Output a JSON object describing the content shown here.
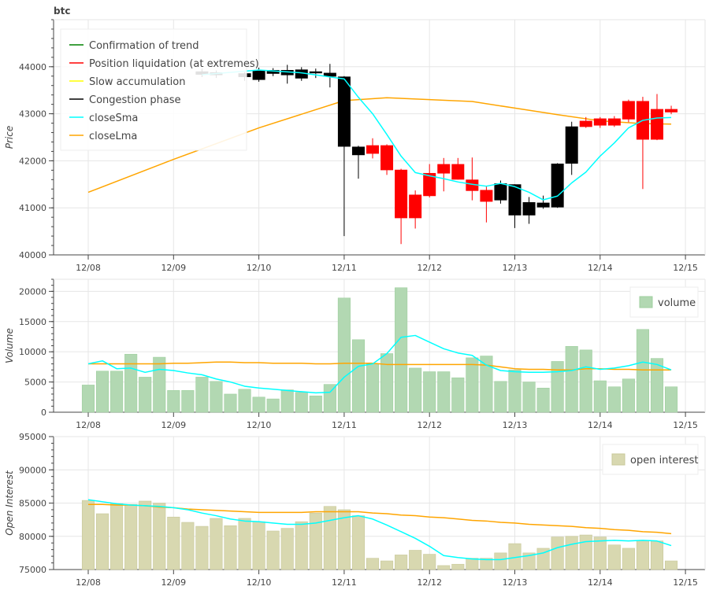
{
  "chart_data": [
    {
      "type": "candlestick",
      "title": "btc",
      "ylabel": "Price",
      "ylim": [
        40000,
        45000
      ],
      "yticks": [
        40000,
        41000,
        42000,
        43000,
        44000
      ],
      "xlim": [
        "12/07 19:00",
        "12/15 05:00"
      ],
      "xticks": [
        "12/08",
        "12/09",
        "12/10",
        "12/11",
        "12/12",
        "12/13",
        "12/14",
        "12/15"
      ],
      "legend_position": "top-left",
      "legend": [
        {
          "label": "Confirmation of trend",
          "color": "#008000"
        },
        {
          "label": "Position liquidation (at extremes)",
          "color": "#ff0000"
        },
        {
          "label": "Slow accumulation",
          "color": "#ffff00"
        },
        {
          "label": "Congestion phase",
          "color": "#000000"
        },
        {
          "label": "closeSma",
          "color": "#00ffff"
        },
        {
          "label": "closeLma",
          "color": "#ffa500"
        }
      ],
      "candles": [
        {
          "t": "12/09 08:00",
          "o": 43830,
          "h": 43960,
          "l": 43780,
          "c": 43900,
          "color": "#000000"
        },
        {
          "t": "12/09 12:00",
          "o": 43820,
          "h": 43920,
          "l": 43760,
          "c": 43880,
          "color": "#000000"
        },
        {
          "t": "12/09 20:00",
          "o": 43780,
          "h": 43880,
          "l": 43700,
          "c": 43860,
          "color": "#000000"
        },
        {
          "t": "12/10 00:00",
          "o": 43920,
          "h": 43980,
          "l": 43680,
          "c": 43720,
          "color": "#000000"
        },
        {
          "t": "12/10 04:00",
          "o": 43850,
          "h": 43970,
          "l": 43800,
          "c": 43930,
          "color": "#000000"
        },
        {
          "t": "12/10 08:00",
          "o": 43930,
          "h": 44040,
          "l": 43640,
          "c": 43820,
          "color": "#000000"
        },
        {
          "t": "12/10 12:00",
          "o": 43940,
          "h": 43990,
          "l": 43700,
          "c": 43750,
          "color": "#000000"
        },
        {
          "t": "12/10 16:00",
          "o": 43900,
          "h": 43960,
          "l": 43760,
          "c": 43860,
          "color": "#000000"
        },
        {
          "t": "12/10 20:00",
          "o": 43870,
          "h": 44060,
          "l": 43560,
          "c": 43790,
          "color": "#000000"
        },
        {
          "t": "12/11 00:00",
          "o": 43790,
          "h": 43800,
          "l": 40400,
          "c": 42300,
          "color": "#000000"
        },
        {
          "t": "12/11 04:00",
          "o": 42300,
          "h": 42320,
          "l": 41620,
          "c": 42120,
          "color": "#000000"
        },
        {
          "t": "12/11 08:00",
          "o": 42150,
          "h": 42480,
          "l": 42050,
          "c": 42330,
          "color": "#ff0000"
        },
        {
          "t": "12/11 12:00",
          "o": 42330,
          "h": 42350,
          "l": 41700,
          "c": 41800,
          "color": "#ff0000"
        },
        {
          "t": "12/11 16:00",
          "o": 41810,
          "h": 41830,
          "l": 40230,
          "c": 40780,
          "color": "#ff0000"
        },
        {
          "t": "12/11 20:00",
          "o": 40780,
          "h": 41370,
          "l": 40560,
          "c": 41280,
          "color": "#ff0000"
        },
        {
          "t": "12/12 00:00",
          "o": 41250,
          "h": 41930,
          "l": 41220,
          "c": 41740,
          "color": "#ff0000"
        },
        {
          "t": "12/12 04:00",
          "o": 41730,
          "h": 42060,
          "l": 41350,
          "c": 41930,
          "color": "#ff0000"
        },
        {
          "t": "12/12 08:00",
          "o": 41930,
          "h": 42060,
          "l": 41600,
          "c": 41600,
          "color": "#ff0000"
        },
        {
          "t": "12/12 12:00",
          "o": 41600,
          "h": 42070,
          "l": 41160,
          "c": 41360,
          "color": "#ff0000"
        },
        {
          "t": "12/12 16:00",
          "o": 41380,
          "h": 41470,
          "l": 40690,
          "c": 41130,
          "color": "#ff0000"
        },
        {
          "t": "12/12 20:00",
          "o": 41160,
          "h": 41580,
          "l": 41090,
          "c": 41520,
          "color": "#000000"
        },
        {
          "t": "12/13 00:00",
          "o": 41500,
          "h": 41500,
          "l": 40570,
          "c": 40840,
          "color": "#000000"
        },
        {
          "t": "12/13 04:00",
          "o": 40840,
          "h": 41230,
          "l": 40660,
          "c": 41120,
          "color": "#000000"
        },
        {
          "t": "12/13 08:00",
          "o": 41110,
          "h": 41260,
          "l": 40980,
          "c": 41010,
          "color": "#000000"
        },
        {
          "t": "12/13 12:00",
          "o": 41010,
          "h": 41950,
          "l": 41000,
          "c": 41940,
          "color": "#000000"
        },
        {
          "t": "12/13 16:00",
          "o": 41940,
          "h": 42830,
          "l": 41700,
          "c": 42730,
          "color": "#000000"
        },
        {
          "t": "12/13 20:00",
          "o": 42720,
          "h": 42930,
          "l": 42700,
          "c": 42850,
          "color": "#ff0000"
        },
        {
          "t": "12/14 00:00",
          "o": 42750,
          "h": 42930,
          "l": 42700,
          "c": 42900,
          "color": "#ff0000"
        },
        {
          "t": "12/14 04:00",
          "o": 42750,
          "h": 42950,
          "l": 42720,
          "c": 42900,
          "color": "#ff0000"
        },
        {
          "t": "12/14 08:00",
          "o": 42880,
          "h": 43300,
          "l": 42820,
          "c": 43270,
          "color": "#ff0000"
        },
        {
          "t": "12/14 12:00",
          "o": 43270,
          "h": 43360,
          "l": 41400,
          "c": 42450,
          "color": "#ff0000"
        },
        {
          "t": "12/14 16:00",
          "o": 42450,
          "h": 43420,
          "l": 42440,
          "c": 43100,
          "color": "#ff0000"
        },
        {
          "t": "12/14 20:00",
          "o": 43100,
          "h": 43170,
          "l": 42990,
          "c": 43030,
          "color": "#ff0000"
        }
      ],
      "closeSma": [
        {
          "t": "12/09 08:00",
          "v": 43830
        },
        {
          "t": "12/10 00:00",
          "v": 43930
        },
        {
          "t": "12/10 12:00",
          "v": 43870
        },
        {
          "t": "12/11 00:00",
          "v": 43740
        },
        {
          "t": "12/11 04:00",
          "v": 43350
        },
        {
          "t": "12/11 08:00",
          "v": 43000
        },
        {
          "t": "12/11 12:00",
          "v": 42560
        },
        {
          "t": "12/11 16:00",
          "v": 42100
        },
        {
          "t": "12/11 20:00",
          "v": 41750
        },
        {
          "t": "12/12 00:00",
          "v": 41680
        },
        {
          "t": "12/12 04:00",
          "v": 41620
        },
        {
          "t": "12/12 08:00",
          "v": 41550
        },
        {
          "t": "12/12 12:00",
          "v": 41500
        },
        {
          "t": "12/12 16:00",
          "v": 41460
        },
        {
          "t": "12/12 20:00",
          "v": 41520
        },
        {
          "t": "12/13 00:00",
          "v": 41450
        },
        {
          "t": "12/13 04:00",
          "v": 41330
        },
        {
          "t": "12/13 08:00",
          "v": 41170
        },
        {
          "t": "12/13 12:00",
          "v": 41250
        },
        {
          "t": "12/13 16:00",
          "v": 41530
        },
        {
          "t": "12/13 20:00",
          "v": 41760
        },
        {
          "t": "12/14 00:00",
          "v": 42100
        },
        {
          "t": "12/14 04:00",
          "v": 42380
        },
        {
          "t": "12/14 08:00",
          "v": 42700
        },
        {
          "t": "12/14 12:00",
          "v": 42860
        },
        {
          "t": "12/14 16:00",
          "v": 42910
        },
        {
          "t": "12/14 20:00",
          "v": 42920
        }
      ],
      "closeLma": [
        {
          "t": "12/08 00:00",
          "v": 41330
        },
        {
          "t": "12/09 00:00",
          "v": 42030
        },
        {
          "t": "12/10 00:00",
          "v": 42700
        },
        {
          "t": "12/11 00:00",
          "v": 43280
        },
        {
          "t": "12/11 12:00",
          "v": 43340
        },
        {
          "t": "12/12 00:00",
          "v": 43300
        },
        {
          "t": "12/12 12:00",
          "v": 43260
        },
        {
          "t": "12/13 00:00",
          "v": 43120
        },
        {
          "t": "12/13 12:00",
          "v": 42980
        },
        {
          "t": "12/14 00:00",
          "v": 42850
        },
        {
          "t": "12/14 12:00",
          "v": 42790
        },
        {
          "t": "12/14 20:00",
          "v": 42780
        }
      ]
    },
    {
      "type": "bar",
      "ylabel": "Volume",
      "ylim": [
        0,
        22000
      ],
      "yticks": [
        0,
        5000,
        10000,
        15000,
        20000
      ],
      "xticks": [
        "12/08",
        "12/09",
        "12/10",
        "12/11",
        "12/12",
        "12/13",
        "12/14",
        "12/15"
      ],
      "legend_position": "top-right",
      "legend": [
        {
          "label": "volume",
          "color": "#b2d8b2"
        }
      ],
      "bar_color": "#b2d8b2",
      "times": [
        "12/08 00:00",
        "12/08 04:00",
        "12/08 08:00",
        "12/08 12:00",
        "12/08 16:00",
        "12/08 20:00",
        "12/09 00:00",
        "12/09 04:00",
        "12/09 08:00",
        "12/09 12:00",
        "12/09 16:00",
        "12/09 20:00",
        "12/10 00:00",
        "12/10 04:00",
        "12/10 08:00",
        "12/10 12:00",
        "12/10 16:00",
        "12/10 20:00",
        "12/11 00:00",
        "12/11 04:00",
        "12/11 08:00",
        "12/11 12:00",
        "12/11 16:00",
        "12/11 20:00",
        "12/12 00:00",
        "12/12 04:00",
        "12/12 08:00",
        "12/12 12:00",
        "12/12 16:00",
        "12/12 20:00",
        "12/13 00:00",
        "12/13 04:00",
        "12/13 08:00",
        "12/13 12:00",
        "12/13 16:00",
        "12/13 20:00",
        "12/14 00:00",
        "12/14 04:00",
        "12/14 08:00",
        "12/14 12:00",
        "12/14 16:00",
        "12/14 20:00"
      ],
      "values": [
        4500,
        6800,
        6800,
        9600,
        5800,
        9100,
        3600,
        3600,
        5800,
        5100,
        3000,
        3800,
        2500,
        2200,
        3700,
        3300,
        2700,
        4600,
        18900,
        12000,
        8000,
        9700,
        20600,
        7300,
        6700,
        6700,
        5700,
        9000,
        9300,
        5100,
        7000,
        5000,
        4000,
        8400,
        10900,
        10300,
        5200,
        4200,
        5500,
        13700,
        8900,
        4200
      ],
      "closeSma": [
        8000,
        8500,
        7200,
        7300,
        6600,
        7100,
        6900,
        6500,
        6200,
        5500,
        5000,
        4300,
        4000,
        3800,
        3600,
        3400,
        3200,
        3300,
        5800,
        7600,
        8000,
        9700,
        12400,
        12700,
        11600,
        10500,
        9800,
        9400,
        7800,
        6900,
        6700,
        6600,
        6600,
        6700,
        6900,
        7500,
        7100,
        7300,
        7700,
        8300,
        7900,
        7000
      ],
      "closeLma": [
        8000,
        8000,
        8000,
        8000,
        8000,
        8000,
        8100,
        8100,
        8200,
        8300,
        8300,
        8200,
        8200,
        8100,
        8100,
        8100,
        8000,
        8000,
        8100,
        8100,
        8100,
        7900,
        7900,
        7900,
        7900,
        7900,
        7900,
        7900,
        7800,
        7500,
        7200,
        7100,
        7100,
        7000,
        7000,
        7200,
        7200,
        7100,
        7100,
        7000,
        7000,
        7000
      ]
    },
    {
      "type": "bar",
      "ylabel": "Open Interest",
      "ylim": [
        75000,
        95000
      ],
      "yticks": [
        75000,
        80000,
        85000,
        90000,
        95000
      ],
      "xticks": [
        "12/08",
        "12/09",
        "12/10",
        "12/11",
        "12/12",
        "12/13",
        "12/14",
        "12/15"
      ],
      "legend_position": "top-right",
      "legend": [
        {
          "label": "open interest",
          "color": "#d8d8b0"
        }
      ],
      "bar_color": "#d8d8b0",
      "values": [
        85400,
        83400,
        84900,
        84800,
        85300,
        85000,
        82900,
        82100,
        81500,
        82700,
        81600,
        82700,
        82200,
        80800,
        81200,
        82200,
        83500,
        84500,
        84000,
        83100,
        76700,
        76300,
        77200,
        77900,
        77300,
        75600,
        75800,
        76700,
        76700,
        77500,
        78900,
        77500,
        78200,
        79900,
        80000,
        80200,
        79900,
        78700,
        78200,
        79400,
        79300,
        76300
      ],
      "closeSma": [
        85500,
        85200,
        84900,
        84700,
        84600,
        84500,
        84300,
        84000,
        83500,
        83100,
        82600,
        82300,
        82200,
        82000,
        81800,
        81800,
        82000,
        82400,
        82800,
        83100,
        82600,
        81700,
        80700,
        79700,
        78500,
        77100,
        76800,
        76600,
        76500,
        76500,
        76800,
        77100,
        77500,
        78300,
        78800,
        79200,
        79300,
        79400,
        79300,
        79400,
        79300,
        78600
      ],
      "closeLma": [
        84800,
        84800,
        84700,
        84700,
        84600,
        84400,
        84300,
        84100,
        84000,
        83900,
        83800,
        83700,
        83600,
        83600,
        83600,
        83600,
        83700,
        83700,
        83700,
        83700,
        83500,
        83400,
        83200,
        83100,
        82900,
        82800,
        82600,
        82400,
        82300,
        82100,
        82000,
        81800,
        81700,
        81600,
        81500,
        81300,
        81200,
        81000,
        80900,
        80700,
        80600,
        80400
      ]
    }
  ],
  "colors": {
    "closeSma": "#00ffff",
    "closeLma": "#ffa500",
    "grid": "#e6e6e6",
    "axis": "#444444"
  }
}
